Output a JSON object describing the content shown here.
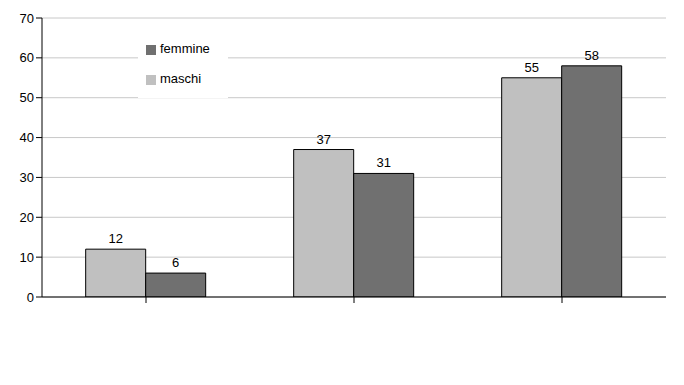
{
  "chart_data": {
    "type": "bar",
    "categories": [
      null,
      null,
      null
    ],
    "series": [
      {
        "name": "maschi",
        "color": "#c0c0c0",
        "values": [
          12,
          37,
          55
        ]
      },
      {
        "name": "femmine",
        "color": "#707070",
        "values": [
          6,
          31,
          58
        ]
      }
    ],
    "ylim": [
      0,
      70
    ],
    "yticks": [
      0,
      10,
      20,
      30,
      40,
      50,
      60,
      70
    ],
    "grid": true,
    "legend": "upper left",
    "data_labels": true
  }
}
